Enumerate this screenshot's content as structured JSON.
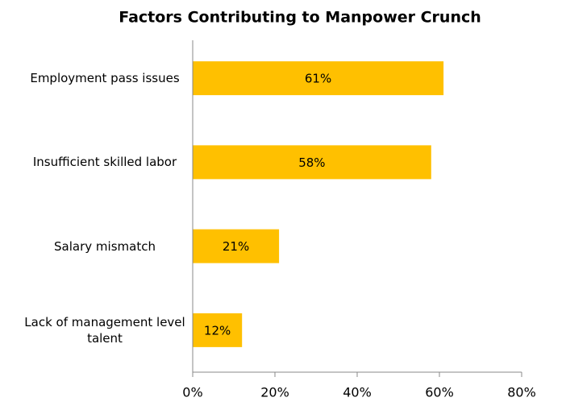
{
  "chart_data": {
    "type": "hbar",
    "title": "Factors Contributing to Manpower Crunch",
    "categories": [
      "Employment pass issues",
      "Insufficient skilled labor",
      "Salary mismatch",
      "Lack of management level talent"
    ],
    "values": [
      61,
      58,
      21,
      12
    ],
    "value_labels": [
      "61%",
      "58%",
      "21%",
      "12%"
    ],
    "color": "#ffc000",
    "xlim": [
      0,
      80
    ],
    "xticks": [
      {
        "value": 0,
        "label": "0%"
      },
      {
        "value": 20,
        "label": "20%"
      },
      {
        "value": 40,
        "label": "40%"
      },
      {
        "value": 60,
        "label": "60%"
      },
      {
        "value": 80,
        "label": "80%"
      }
    ],
    "grid": false
  }
}
